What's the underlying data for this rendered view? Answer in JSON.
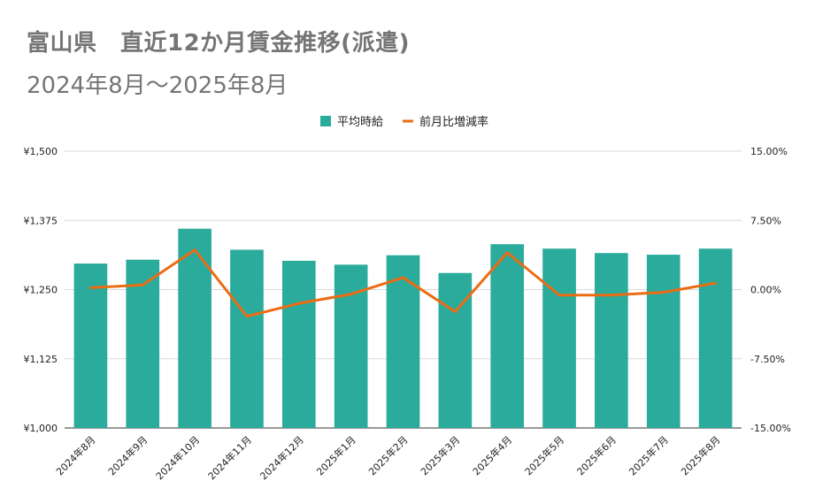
{
  "title": "富山県　直近12か月賃金推移(派遣)",
  "subtitle": "2024年8月～2025年8月",
  "colors": {
    "bar": "#2bab9c",
    "line": "#ec6c14",
    "grid": "#d9d9d9"
  },
  "chart_data": {
    "type": "bar",
    "categories": [
      "2024年8月",
      "2024年9月",
      "2024年10月",
      "2024年11月",
      "2024年12月",
      "2025年1月",
      "2025年2月",
      "2025年3月",
      "2025年4月",
      "2025年5月",
      "2025年6月",
      "2025年7月",
      "2025年8月"
    ],
    "series": [
      {
        "name": "平均時給",
        "type": "bar",
        "axis": "left",
        "values": [
          1297,
          1304,
          1360,
          1322,
          1302,
          1295,
          1312,
          1280,
          1332,
          1324,
          1316,
          1313,
          1324
        ]
      },
      {
        "name": "前月比増減率",
        "type": "line",
        "axis": "right",
        "values": [
          0.2,
          0.5,
          4.3,
          -2.9,
          -1.5,
          -0.5,
          1.3,
          -2.4,
          4.0,
          -0.6,
          -0.6,
          -0.3,
          0.7
        ]
      }
    ],
    "left_axis": {
      "ylim": [
        1000,
        1500
      ],
      "ticks": [
        "¥1,000",
        "¥1,125",
        "¥1,250",
        "¥1,375",
        "¥1,500"
      ]
    },
    "right_axis": {
      "ylim": [
        -15,
        15
      ],
      "ticks": [
        "-15.00%",
        "-7.50%",
        "0.00%",
        "7.50%",
        "15.00%"
      ]
    },
    "grid": true,
    "legend_position": "top-center"
  }
}
